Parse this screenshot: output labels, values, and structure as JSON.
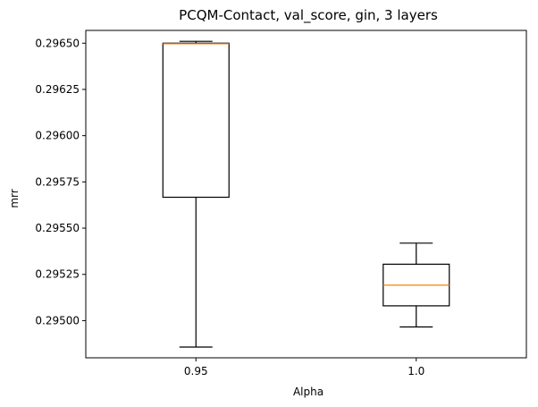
{
  "chart_data": {
    "type": "box",
    "title": "PCQM-Contact, val_score, gin, 3 layers",
    "xlabel": "Alpha",
    "ylabel": "mrr",
    "categories": [
      "0.95",
      "1.0"
    ],
    "boxes": [
      {
        "category": "0.95",
        "whisker_low": 0.294857,
        "q1": 0.295667,
        "median": 0.296497,
        "q3": 0.2965,
        "whisker_high": 0.29651
      },
      {
        "category": "1.0",
        "whisker_low": 0.294966,
        "q1": 0.29508,
        "median": 0.295192,
        "q3": 0.295305,
        "whisker_high": 0.295419
      }
    ],
    "ylim": [
      0.294799,
      0.296569
    ],
    "yticks": [
      0.295,
      0.29525,
      0.2955,
      0.29575,
      0.296,
      0.29625,
      0.2965
    ],
    "ytick_labels": [
      "0.29500",
      "0.29525",
      "0.29550",
      "0.29575",
      "0.29600",
      "0.29625",
      "0.29650"
    ],
    "grid": false,
    "colors": {
      "box": "#000000",
      "median": "#ff7f0e"
    }
  }
}
